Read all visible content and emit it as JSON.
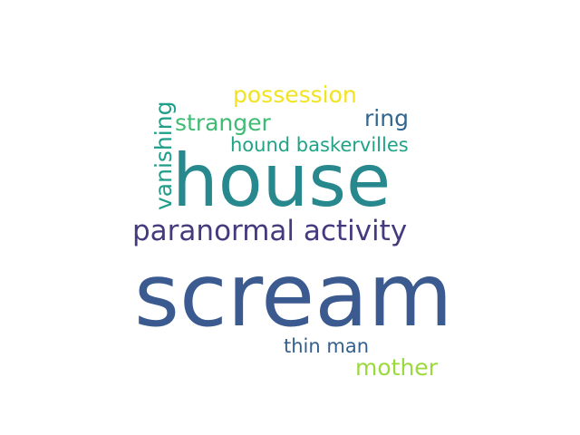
{
  "words": [
    {
      "text": "scream",
      "color": "#3b5a8f"
    },
    {
      "text": "house",
      "color": "#27888e"
    },
    {
      "text": "paranormal activity",
      "color": "#463a7f"
    },
    {
      "text": "possession",
      "color": "#f2e321"
    },
    {
      "text": "stranger",
      "color": "#3fbc73"
    },
    {
      "text": "ring",
      "color": "#32668e"
    },
    {
      "text": "hound baskervilles",
      "color": "#20a386"
    },
    {
      "text": "thin man",
      "color": "#35608d"
    },
    {
      "text": "mother",
      "color": "#9bd93c"
    },
    {
      "text": "vanishing",
      "color": "#1f9e89"
    }
  ]
}
